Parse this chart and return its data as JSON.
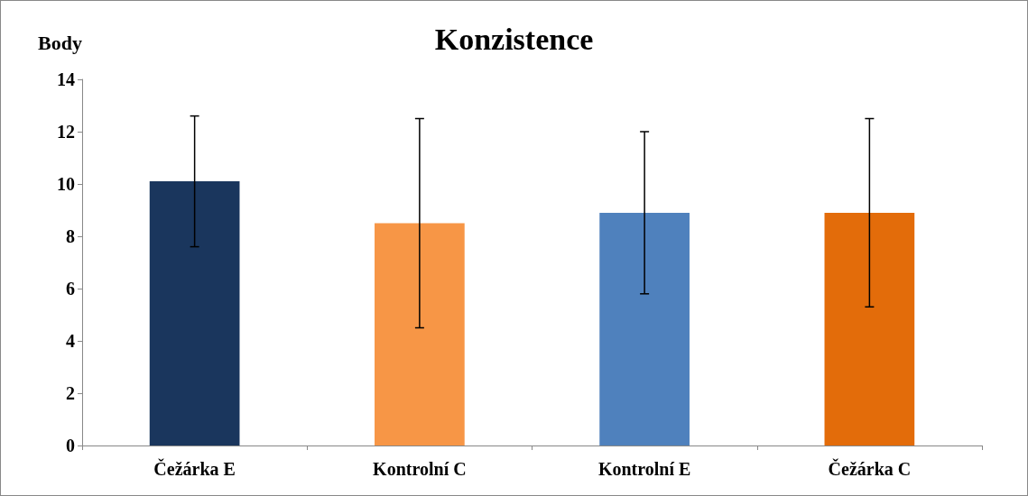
{
  "chart_data": {
    "type": "bar",
    "title": "Konzistence",
    "ylabel": "Body",
    "categories": [
      "Čežárka E",
      "Kontrolní C",
      "Kontrolní E",
      "Čežárka C"
    ],
    "values": [
      10.1,
      8.5,
      8.9,
      8.9
    ],
    "colors": [
      "#1a365d",
      "#f79646",
      "#4f81bd",
      "#e36c0a"
    ],
    "errors": [
      2.5,
      4.0,
      3.1,
      3.6
    ],
    "ylim": [
      0,
      14
    ],
    "yticks": [
      0,
      2,
      4,
      6,
      8,
      10,
      12,
      14
    ],
    "grid": false
  }
}
